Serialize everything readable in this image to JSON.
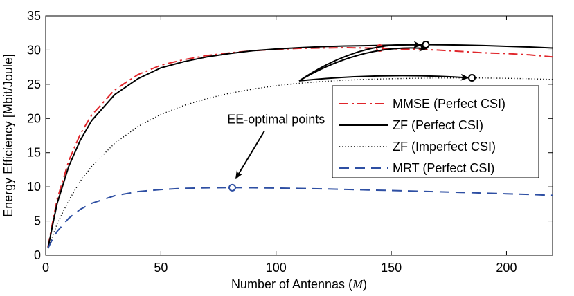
{
  "chart_data": {
    "type": "line",
    "title": "",
    "xlabel": "Number of Antennas",
    "xlabel_symbol": "M",
    "ylabel": "Energy Efficiency [Mbit/Joule]",
    "xlim": [
      0,
      220
    ],
    "ylim": [
      0,
      35
    ],
    "xticks": [
      0,
      50,
      100,
      150,
      200
    ],
    "yticks": [
      0,
      5,
      10,
      15,
      20,
      25,
      30,
      35
    ],
    "grid": false,
    "legend_position": "center-right",
    "series": [
      {
        "name": "MMSE (Perfect CSI)",
        "color": "#e0262b",
        "style": "dashdot",
        "x": [
          1,
          3,
          5,
          10,
          15,
          20,
          30,
          40,
          50,
          60,
          70,
          80,
          90,
          100,
          110,
          120,
          130,
          140,
          145,
          150,
          160,
          170,
          180,
          190,
          200,
          210,
          220
        ],
        "y": [
          1.2,
          4.8,
          8.2,
          13.8,
          17.7,
          20.5,
          24.2,
          26.4,
          27.8,
          28.6,
          29.2,
          29.6,
          29.9,
          30.1,
          30.25,
          30.3,
          30.35,
          30.3,
          30.3,
          30.2,
          30.1,
          30.0,
          29.8,
          29.6,
          29.5,
          29.3,
          29.0
        ]
      },
      {
        "name": "ZF (Perfect CSI)",
        "color": "#000000",
        "style": "solid",
        "x": [
          1,
          3,
          5,
          10,
          15,
          20,
          30,
          40,
          50,
          60,
          70,
          80,
          90,
          100,
          110,
          120,
          130,
          140,
          150,
          160,
          165,
          170,
          180,
          190,
          200,
          210,
          220
        ],
        "y": [
          1.0,
          4.4,
          7.6,
          13.0,
          16.8,
          19.7,
          23.5,
          25.8,
          27.4,
          28.3,
          29.0,
          29.5,
          29.9,
          30.15,
          30.35,
          30.5,
          30.6,
          30.65,
          30.72,
          30.78,
          30.8,
          30.78,
          30.74,
          30.66,
          30.55,
          30.45,
          30.3
        ]
      },
      {
        "name": "ZF (Imperfect CSI)",
        "color": "#000000",
        "style": "dotted",
        "x": [
          1,
          3,
          5,
          10,
          15,
          20,
          30,
          40,
          50,
          60,
          70,
          80,
          90,
          100,
          110,
          120,
          130,
          140,
          150,
          160,
          170,
          180,
          185,
          190,
          200,
          210,
          220
        ],
        "y": [
          1.0,
          2.8,
          4.6,
          8.0,
          10.8,
          13.0,
          16.4,
          18.8,
          20.6,
          21.9,
          22.9,
          23.7,
          24.3,
          24.8,
          25.15,
          25.4,
          25.6,
          25.73,
          25.82,
          25.88,
          25.92,
          25.93,
          25.93,
          25.92,
          25.88,
          25.82,
          25.7
        ]
      },
      {
        "name": "MRT (Perfect CSI)",
        "color": "#2e4fa3",
        "style": "dashed",
        "x": [
          1,
          3,
          5,
          10,
          15,
          20,
          30,
          40,
          50,
          60,
          70,
          80,
          90,
          100,
          110,
          120,
          130,
          140,
          150,
          160,
          170,
          180,
          190,
          200,
          210,
          220
        ],
        "y": [
          1.0,
          2.4,
          3.5,
          5.4,
          6.7,
          7.6,
          8.7,
          9.3,
          9.6,
          9.78,
          9.85,
          9.88,
          9.86,
          9.82,
          9.76,
          9.7,
          9.62,
          9.54,
          9.46,
          9.37,
          9.28,
          9.18,
          9.08,
          8.98,
          8.88,
          8.75
        ]
      }
    ],
    "optimal_points": [
      {
        "series": "MMSE (Perfect CSI)",
        "x": 145,
        "y": 30.3,
        "color": "#e0262b"
      },
      {
        "series": "ZF (Perfect CSI)",
        "x": 165,
        "y": 30.8,
        "color": "#000000"
      },
      {
        "series": "ZF (Imperfect CSI)",
        "x": 185,
        "y": 25.95,
        "color": "#000000"
      },
      {
        "series": "MRT (Perfect CSI)",
        "x": 81,
        "y": 9.88,
        "color": "#2e4fa3"
      }
    ],
    "annotation": {
      "text": "EE-optimal points",
      "anchor": [
        100,
        19.9
      ],
      "arrow_starts": [
        [
          110,
          25.5
        ],
        [
          110,
          25.5
        ],
        [
          110,
          25.5
        ],
        [
          95,
          18.2
        ]
      ],
      "arrow_targets": [
        [
          163,
          30.7
        ],
        [
          165.5,
          30.2
        ],
        [
          183.5,
          25.95
        ],
        [
          82.5,
          11.2
        ]
      ]
    }
  }
}
